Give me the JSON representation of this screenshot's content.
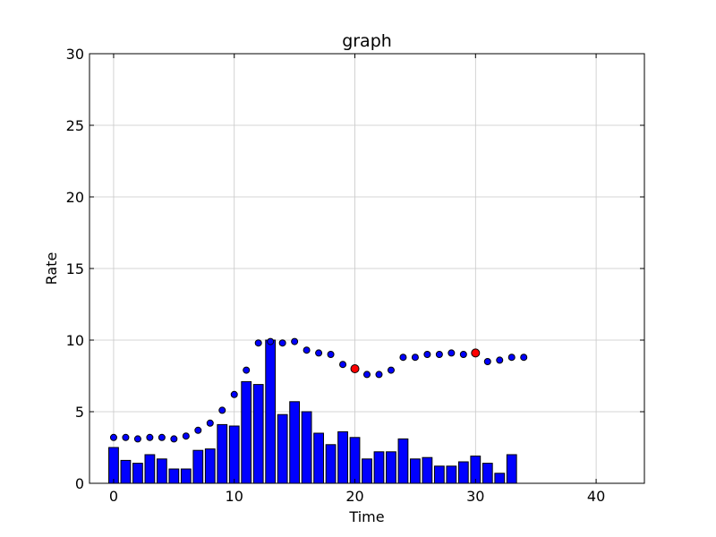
{
  "chart_data": {
    "type": "bar",
    "title": "graph",
    "xlabel": "Time",
    "ylabel": "Rate",
    "xlim": [
      -2,
      44
    ],
    "ylim": [
      0,
      30
    ],
    "xticks": [
      0,
      10,
      20,
      30,
      40
    ],
    "yticks": [
      0,
      5,
      10,
      15,
      20,
      25,
      30
    ],
    "grid": true,
    "colors": {
      "bar_fill": "#0000ff",
      "bar_edge": "#000000",
      "point_fill": "#0000ff",
      "highlight_fill": "#ff0000",
      "point_edge": "#000000"
    },
    "series": [
      {
        "type": "bar",
        "x": [
          0,
          1,
          2,
          3,
          4,
          5,
          6,
          7,
          8,
          9,
          10,
          11,
          12,
          13,
          14,
          15,
          16,
          17,
          18,
          19,
          20,
          21,
          22,
          23,
          24,
          25,
          26,
          27,
          28,
          29,
          30,
          31,
          32,
          33
        ],
        "values": [
          2.5,
          1.6,
          1.4,
          2.0,
          1.7,
          1.0,
          1.0,
          2.3,
          2.4,
          4.1,
          4.0,
          7.1,
          6.9,
          10.0,
          4.8,
          5.7,
          5.0,
          3.5,
          2.7,
          3.6,
          3.2,
          1.7,
          2.2,
          2.2,
          3.1,
          1.7,
          1.8,
          1.2,
          1.2,
          1.5,
          1.9,
          1.4,
          0.7,
          2.0
        ]
      },
      {
        "type": "scatter",
        "x": [
          0,
          1,
          2,
          3,
          4,
          5,
          6,
          7,
          8,
          9,
          10,
          11,
          12,
          13,
          14,
          15,
          16,
          17,
          18,
          19,
          20,
          21,
          22,
          23,
          24,
          25,
          26,
          27,
          28,
          29,
          30,
          31,
          32,
          33,
          34
        ],
        "values": [
          3.2,
          3.2,
          3.1,
          3.2,
          3.2,
          3.1,
          3.3,
          3.7,
          4.2,
          5.1,
          6.2,
          7.9,
          9.8,
          9.9,
          9.8,
          9.9,
          9.3,
          9.1,
          9.0,
          8.3,
          8.0,
          7.6,
          7.6,
          7.9,
          8.8,
          8.8,
          9.0,
          9.0,
          9.1,
          9.0,
          9.1,
          8.5,
          8.6,
          8.8,
          8.8
        ],
        "highlighted_x": [
          20,
          30
        ]
      }
    ]
  }
}
